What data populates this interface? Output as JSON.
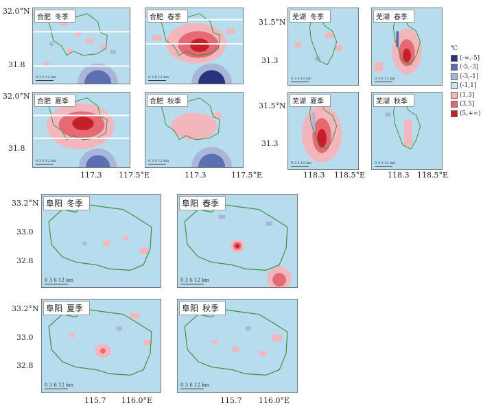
{
  "legend": {
    "unit": "℃",
    "items": [
      {
        "label": "(-∞,-5]",
        "color": "#27337f"
      },
      {
        "label": "(-5,-3]",
        "color": "#5a70b2"
      },
      {
        "label": "(-3,-1]",
        "color": "#a9b6da"
      },
      {
        "label": "(-1,1]",
        "color": "#c6e4f3"
      },
      {
        "label": "(1,3]",
        "color": "#f4b6bd"
      },
      {
        "label": "(3,5]",
        "color": "#e66a73"
      },
      {
        "label": "(5,+∞)",
        "color": "#c51f28"
      }
    ]
  },
  "panels": [
    {
      "city": "合肥",
      "season": "冬季",
      "scale": "0 3 6    12 km"
    },
    {
      "city": "合肥",
      "season": "春季",
      "scale": "0 3 6    12 km"
    },
    {
      "city": "合肥",
      "season": "夏季",
      "scale": "0 3 6    12 km"
    },
    {
      "city": "合肥",
      "season": "秋季",
      "scale": "0 3 6    12 km"
    },
    {
      "city": "芜湖",
      "season": "冬季",
      "scale": "0 3 6    12 km"
    },
    {
      "city": "芜湖",
      "season": "春季",
      "scale": "0 3 6    12 km"
    },
    {
      "city": "芜湖",
      "season": "夏季",
      "scale": "0 3 6    12 km"
    },
    {
      "city": "芜湖",
      "season": "秋季",
      "scale": "0 3 6    12 km"
    },
    {
      "city": "阜阳",
      "season": "冬季",
      "scale": "0 3 6  12 km"
    },
    {
      "city": "阜阳",
      "season": "春季",
      "scale": "0 3 6  12 km"
    },
    {
      "city": "阜阳",
      "season": "夏季",
      "scale": "0 3 6  12 km"
    },
    {
      "city": "阜阳",
      "season": "秋季",
      "scale": "0 3 6  12 km"
    }
  ],
  "axes": {
    "hefei": {
      "lat": [
        "32.0°N",
        "31.8",
        "32.0°N",
        "31.8"
      ],
      "lon": [
        "117.3",
        "117.5°E",
        "117.3",
        "117.5°E"
      ]
    },
    "wuhu": {
      "lat": [
        "31.5°N",
        "31.3",
        "31.5°N",
        "31.3"
      ],
      "lon": [
        "118.3",
        "118.5°E",
        "118.3",
        "118.5°E"
      ]
    },
    "fuyang": {
      "lat": [
        "33.2°N",
        "33.0",
        "32.8",
        "33.2°N",
        "33.0",
        "32.8"
      ],
      "lon": [
        "115.7",
        "116.0°E",
        "115.7",
        "116.0°E"
      ]
    }
  }
}
